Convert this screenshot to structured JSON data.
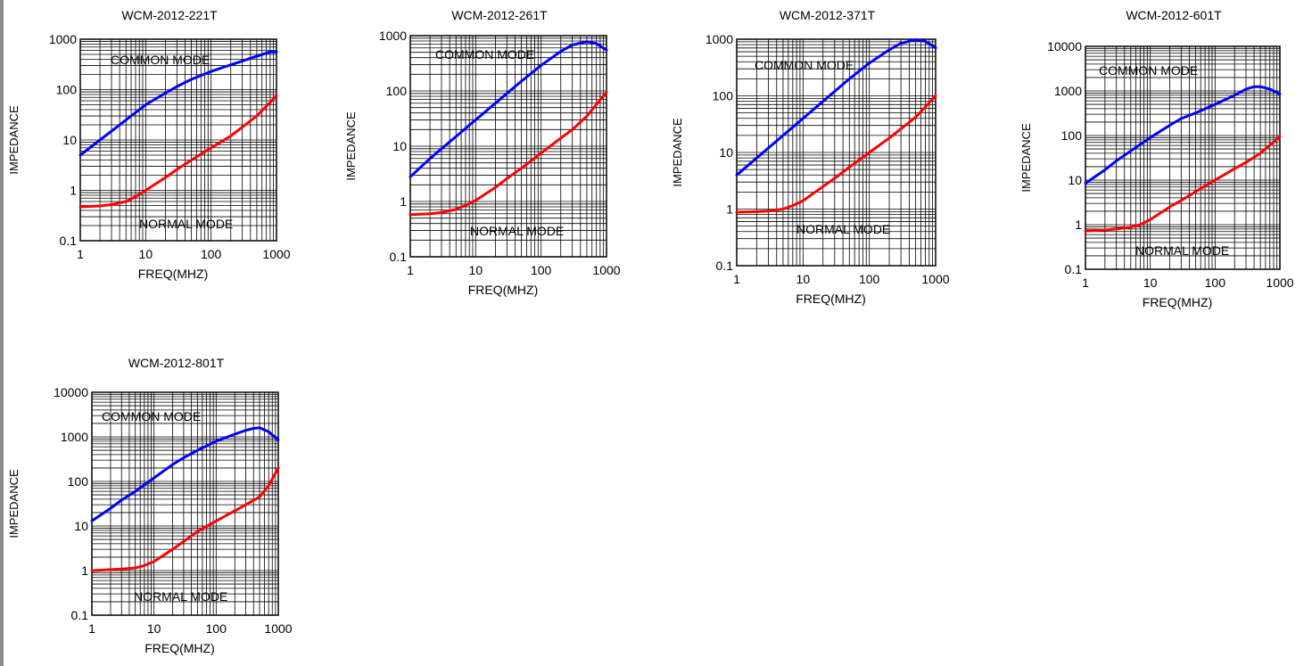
{
  "chart_data": [
    {
      "type": "line",
      "title": "WCM-2012-221T",
      "xlabel": "FREQ(MHZ)",
      "ylabel": "IMPEDANCE",
      "xscale": "log",
      "yscale": "log",
      "xlim": [
        1,
        1000
      ],
      "ylim": [
        0.1,
        1000
      ],
      "xticks": [
        "1",
        "10",
        "100",
        "1000"
      ],
      "yticks": [
        "0.1",
        "1",
        "10",
        "100",
        "1000"
      ],
      "grid": true,
      "annotations": [
        "COMMON MODE",
        "NORMAL MODE"
      ],
      "series": [
        {
          "color": "#0000ff",
          "x": [
            1,
            2,
            3,
            5,
            10,
            20,
            30,
            50,
            100,
            200,
            300,
            500,
            800,
            1000
          ],
          "y": [
            5,
            10,
            15,
            25,
            50,
            85,
            115,
            160,
            230,
            310,
            370,
            460,
            560,
            560
          ]
        },
        {
          "color": "#ff0000",
          "x": [
            1,
            2,
            3,
            5,
            7,
            10,
            20,
            30,
            50,
            100,
            200,
            300,
            500,
            1000
          ],
          "y": [
            0.47,
            0.49,
            0.52,
            0.6,
            0.75,
            1.0,
            1.8,
            2.6,
            4.0,
            7.0,
            12,
            18,
            30,
            75
          ]
        }
      ]
    },
    {
      "type": "line",
      "title": "WCM-2012-261T",
      "xlabel": "FREQ(MHZ)",
      "ylabel": "IMPEDANCE",
      "xscale": "log",
      "yscale": "log",
      "xlim": [
        1,
        1000
      ],
      "ylim": [
        0.1,
        1000
      ],
      "xticks": [
        "1",
        "10",
        "100",
        "1000"
      ],
      "yticks": [
        "0.1",
        "1",
        "10",
        "100",
        "1000"
      ],
      "grid": true,
      "annotations": [
        "COMMON MODE",
        "NORMAL MODE"
      ],
      "series": [
        {
          "color": "#0000ff",
          "x": [
            1,
            2,
            3,
            5,
            10,
            20,
            30,
            50,
            100,
            200,
            300,
            500,
            700,
            1000
          ],
          "y": [
            2.8,
            6,
            9,
            15,
            30,
            60,
            90,
            150,
            290,
            520,
            680,
            780,
            720,
            550
          ]
        },
        {
          "color": "#ff0000",
          "x": [
            1,
            2,
            3,
            5,
            7,
            10,
            20,
            30,
            50,
            100,
            200,
            300,
            500,
            1000
          ],
          "y": [
            0.58,
            0.6,
            0.63,
            0.72,
            0.85,
            1.05,
            1.8,
            2.6,
            4.0,
            7.5,
            14,
            20,
            35,
            95
          ]
        }
      ]
    },
    {
      "type": "line",
      "title": "WCM-2012-371T",
      "xlabel": "FREQ(MHZ)",
      "ylabel": "IMPEDANCE",
      "xscale": "log",
      "yscale": "log",
      "xlim": [
        1,
        1000
      ],
      "ylim": [
        0.1,
        1000
      ],
      "xticks": [
        "1",
        "10",
        "100",
        "1000"
      ],
      "yticks": [
        "0.1",
        "1",
        "10",
        "100",
        "1000"
      ],
      "grid": true,
      "annotations": [
        "COMMON MODE",
        "NORMAL MODE"
      ],
      "series": [
        {
          "color": "#0000ff",
          "x": [
            1,
            2,
            3,
            5,
            10,
            20,
            30,
            50,
            100,
            200,
            300,
            500,
            700,
            1000
          ],
          "y": [
            4,
            8,
            12,
            20,
            40,
            80,
            120,
            200,
            380,
            650,
            850,
            980,
            920,
            700
          ]
        },
        {
          "color": "#ff0000",
          "x": [
            1,
            2,
            3,
            5,
            7,
            10,
            20,
            30,
            50,
            100,
            200,
            300,
            500,
            1000
          ],
          "y": [
            0.88,
            0.9,
            0.92,
            1.0,
            1.15,
            1.4,
            2.5,
            3.5,
            5.5,
            10,
            18,
            26,
            42,
            100
          ]
        }
      ]
    },
    {
      "type": "line",
      "title": "WCM-2012-601T",
      "xlabel": "FREQ(MHZ)",
      "ylabel": "IMPEDANCE",
      "xscale": "log",
      "yscale": "log",
      "xlim": [
        1,
        1000
      ],
      "ylim": [
        0.1,
        10000
      ],
      "xticks": [
        "1",
        "10",
        "100",
        "1000"
      ],
      "yticks": [
        "0.1",
        "1",
        "10",
        "100",
        "1000",
        "10000"
      ],
      "grid": true,
      "annotations": [
        "COMMON MODE",
        "NORMAL MODE"
      ],
      "series": [
        {
          "color": "#0000ff",
          "x": [
            1,
            2,
            3,
            5,
            10,
            20,
            30,
            50,
            100,
            200,
            300,
            400,
            500,
            700,
            1000
          ],
          "y": [
            8.5,
            17,
            27,
            45,
            90,
            170,
            240,
            320,
            500,
            800,
            1100,
            1250,
            1250,
            1100,
            850
          ]
        },
        {
          "color": "#ff0000",
          "x": [
            1,
            2,
            3,
            5,
            7,
            10,
            20,
            30,
            50,
            100,
            200,
            300,
            500,
            1000
          ],
          "y": [
            0.72,
            0.76,
            0.8,
            0.88,
            1.0,
            1.3,
            2.5,
            3.5,
            5.5,
            10,
            18,
            25,
            40,
            95
          ]
        }
      ]
    },
    {
      "type": "line",
      "title": "WCM-2012-801T",
      "xlabel": "FREQ(MHZ)",
      "ylabel": "IMPEDANCE",
      "xscale": "log",
      "yscale": "log",
      "xlim": [
        1,
        1000
      ],
      "ylim": [
        0.1,
        10000
      ],
      "xticks": [
        "1",
        "10",
        "100",
        "1000"
      ],
      "yticks": [
        "0.1",
        "1",
        "10",
        "100",
        "1000",
        "10000"
      ],
      "grid": true,
      "annotations": [
        "COMMON MODE",
        "NORMAL MODE"
      ],
      "series": [
        {
          "color": "#0000ff",
          "x": [
            1,
            2,
            3,
            5,
            10,
            20,
            30,
            50,
            100,
            200,
            300,
            400,
            500,
            700,
            1000
          ],
          "y": [
            13,
            25,
            38,
            60,
            120,
            240,
            340,
            500,
            800,
            1150,
            1400,
            1550,
            1600,
            1300,
            850
          ]
        },
        {
          "color": "#ff0000",
          "x": [
            1,
            2,
            3,
            5,
            7,
            10,
            20,
            30,
            50,
            100,
            200,
            300,
            500,
            700,
            1000
          ],
          "y": [
            1.0,
            1.05,
            1.08,
            1.15,
            1.3,
            1.6,
            3.0,
            4.5,
            7.5,
            13,
            22,
            30,
            45,
            80,
            200
          ]
        }
      ]
    }
  ]
}
